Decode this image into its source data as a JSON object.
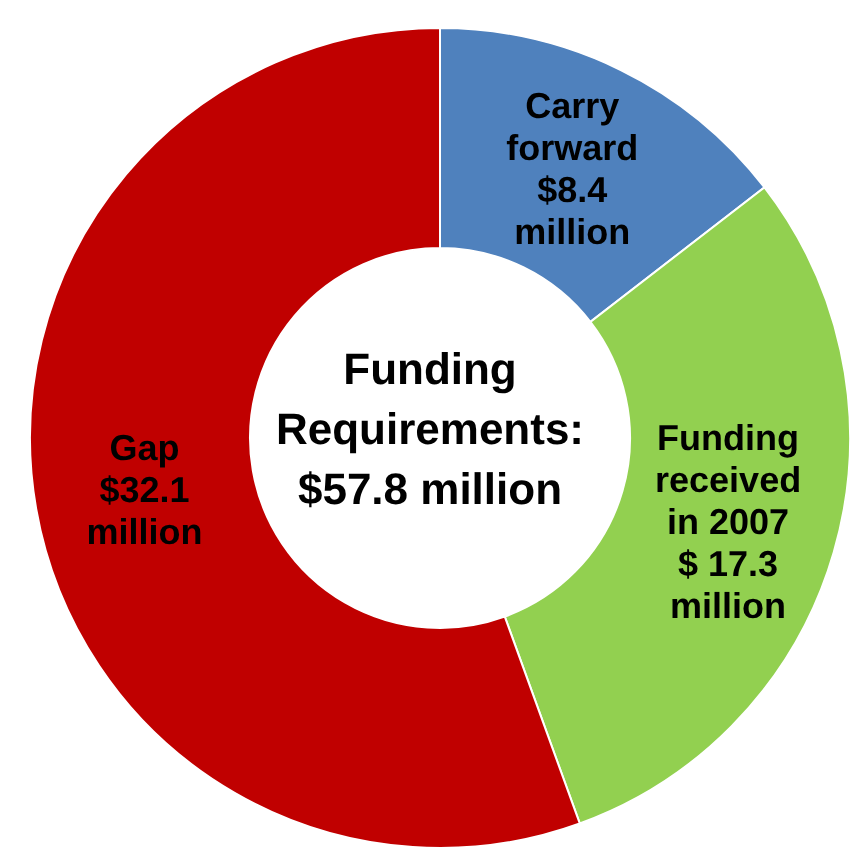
{
  "chart_data": {
    "type": "donut",
    "title": "Funding Requirements: $57.8 million",
    "categories": [
      "Carry forward",
      "Funding received in 2007",
      "Gap"
    ],
    "values": [
      8.4,
      17.3,
      32.1
    ],
    "colors": [
      "#4f81bd",
      "#92d050",
      "#c00000"
    ],
    "value_labels": [
      "$8.4 million",
      "$ 17.3 million",
      "$32.1 million"
    ]
  }
}
